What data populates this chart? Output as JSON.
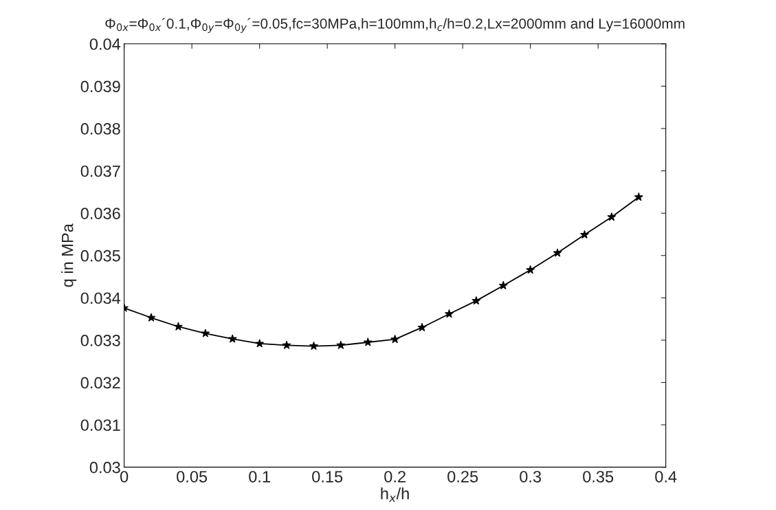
{
  "chart_data": {
    "type": "line",
    "title": "Φ$_{0x}$=Φ$_{0x}$´0.1,Φ$_{0y}$=Φ$_{0y}$´=0.05,fc=30MPa,h=100mm,h$_{c}$/h=0.2,Lx=2000mm and Ly=16000mm",
    "xlabel": "h$_{x}$/h",
    "ylabel": "q in MPa",
    "x": [
      0,
      0.02,
      0.04,
      0.06,
      0.08,
      0.1,
      0.12,
      0.14,
      0.16,
      0.18,
      0.2,
      0.22,
      0.24,
      0.26,
      0.28,
      0.3,
      0.32,
      0.34,
      0.36,
      0.38
    ],
    "series": [
      {
        "color": "#000000",
        "values": [
          0.03376,
          0.03353,
          0.03332,
          0.03316,
          0.03303,
          0.03292,
          0.03288,
          0.03286,
          0.03288,
          0.03295,
          0.03302,
          0.0333,
          0.03362,
          0.03393,
          0.03429,
          0.03466,
          0.03506,
          0.03549,
          0.03591,
          0.03638
        ]
      }
    ],
    "xlim": [
      0,
      0.4
    ],
    "xticks": [
      0,
      0.05,
      0.1,
      0.15,
      0.2,
      0.25,
      0.3,
      0.35,
      0.4
    ],
    "ylim": [
      0.03,
      0.04
    ],
    "yticks": [
      0.03,
      0.031,
      0.032,
      0.033,
      0.034,
      0.035,
      0.036,
      0.037,
      0.038,
      0.039,
      0.04
    ],
    "grid": false,
    "marker": "star",
    "line_style": "solid"
  }
}
